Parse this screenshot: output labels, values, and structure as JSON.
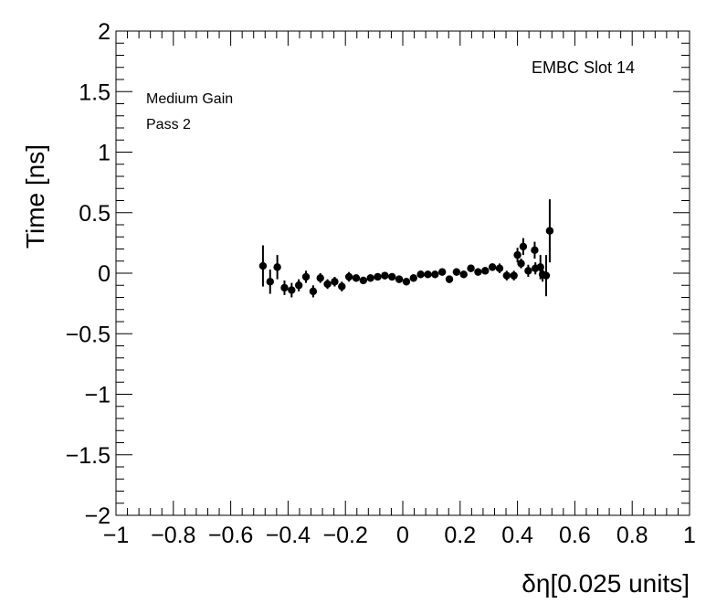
{
  "chart_data": {
    "type": "scatter",
    "title": "",
    "xlabel": "δη[0.025 units]",
    "ylabel": "Time [ns]",
    "xlim": [
      -1,
      1
    ],
    "ylim": [
      -2,
      2
    ],
    "grid": false,
    "x_ticks": [
      -1,
      -0.8,
      -0.6,
      -0.4,
      -0.2,
      0,
      0.2,
      0.4,
      0.6,
      0.8,
      1
    ],
    "x_tick_labels": [
      "−1",
      "−0.8",
      "−0.6",
      "−0.4",
      "−0.2",
      "0",
      "0.2",
      "0.4",
      "0.6",
      "0.8",
      "1"
    ],
    "y_ticks": [
      -2,
      -1.5,
      -1,
      -0.5,
      0,
      0.5,
      1,
      1.5,
      2
    ],
    "y_tick_labels": [
      "−2",
      "−1.5",
      "−1",
      "−0.5",
      "0",
      "0.5",
      "1",
      "1.5",
      "2"
    ],
    "annotations": {
      "slot": "EMBC Slot 14",
      "gain": "Medium Gain",
      "pass": "Pass 2"
    },
    "series": [
      {
        "x": [
          -0.4875,
          -0.4625,
          -0.4375,
          -0.4125,
          -0.3875,
          -0.3625,
          -0.3375,
          -0.3125,
          -0.2875,
          -0.2625,
          -0.2375,
          -0.2125,
          -0.1875,
          -0.1625,
          -0.1375,
          -0.1125,
          -0.0875,
          -0.0625,
          -0.0375,
          -0.0125,
          0.0125,
          0.0375,
          0.0625,
          0.0875,
          0.1125,
          0.1375,
          0.1625,
          0.1875,
          0.2125,
          0.2375,
          0.2625,
          0.2875,
          0.3125,
          0.3375,
          0.3625,
          0.3875,
          0.4125,
          0.4375,
          0.4625,
          0.4875,
          0.5125,
          0.4,
          0.42,
          0.46,
          0.48,
          0.5
        ],
        "y": [
          0.06,
          -0.07,
          0.05,
          -0.12,
          -0.14,
          -0.1,
          -0.03,
          -0.15,
          -0.04,
          -0.09,
          -0.07,
          -0.11,
          -0.03,
          -0.04,
          -0.06,
          -0.04,
          -0.03,
          -0.02,
          -0.03,
          -0.05,
          -0.07,
          -0.04,
          -0.01,
          -0.01,
          -0.01,
          0.01,
          -0.05,
          0.01,
          -0.01,
          0.04,
          0.01,
          0.02,
          0.05,
          0.04,
          -0.02,
          -0.02,
          0.08,
          0.02,
          0.04,
          -0.01,
          0.35,
          0.15,
          0.22,
          0.19,
          0.05,
          -0.02
        ],
        "yerr": [
          0.17,
          0.1,
          0.1,
          0.06,
          0.06,
          0.05,
          0.05,
          0.05,
          0.04,
          0.04,
          0.04,
          0.04,
          0.04,
          0.03,
          0.03,
          0.03,
          0.03,
          0.03,
          0.03,
          0.03,
          0.03,
          0.03,
          0.03,
          0.03,
          0.03,
          0.03,
          0.03,
          0.03,
          0.03,
          0.03,
          0.03,
          0.03,
          0.03,
          0.04,
          0.04,
          0.04,
          0.04,
          0.05,
          0.05,
          0.06,
          0.26,
          0.06,
          0.07,
          0.07,
          0.1,
          0.17
        ]
      }
    ]
  }
}
